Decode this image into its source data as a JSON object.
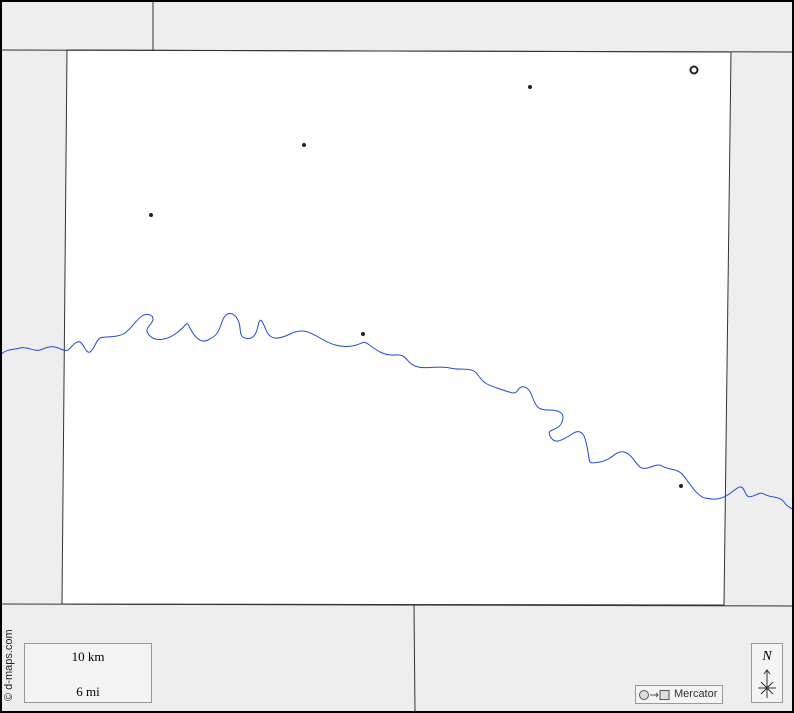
{
  "map": {
    "copyright": "© d-maps.com",
    "scale": {
      "km_label": "10 km",
      "mi_label": "6 mi"
    },
    "projection": {
      "label": "Mercator",
      "icon": "circle-to-square-icon"
    },
    "north_arrow": {
      "label": "N"
    },
    "colors": {
      "outside": "#eeeeee",
      "county": "#ffffff",
      "border": "#333333",
      "river": "#1f4fd0",
      "frame": "#000000"
    },
    "places": [
      {
        "type": "town"
      },
      {
        "type": "town"
      },
      {
        "type": "town"
      },
      {
        "type": "town"
      },
      {
        "type": "town"
      },
      {
        "type": "county-seat"
      }
    ]
  }
}
